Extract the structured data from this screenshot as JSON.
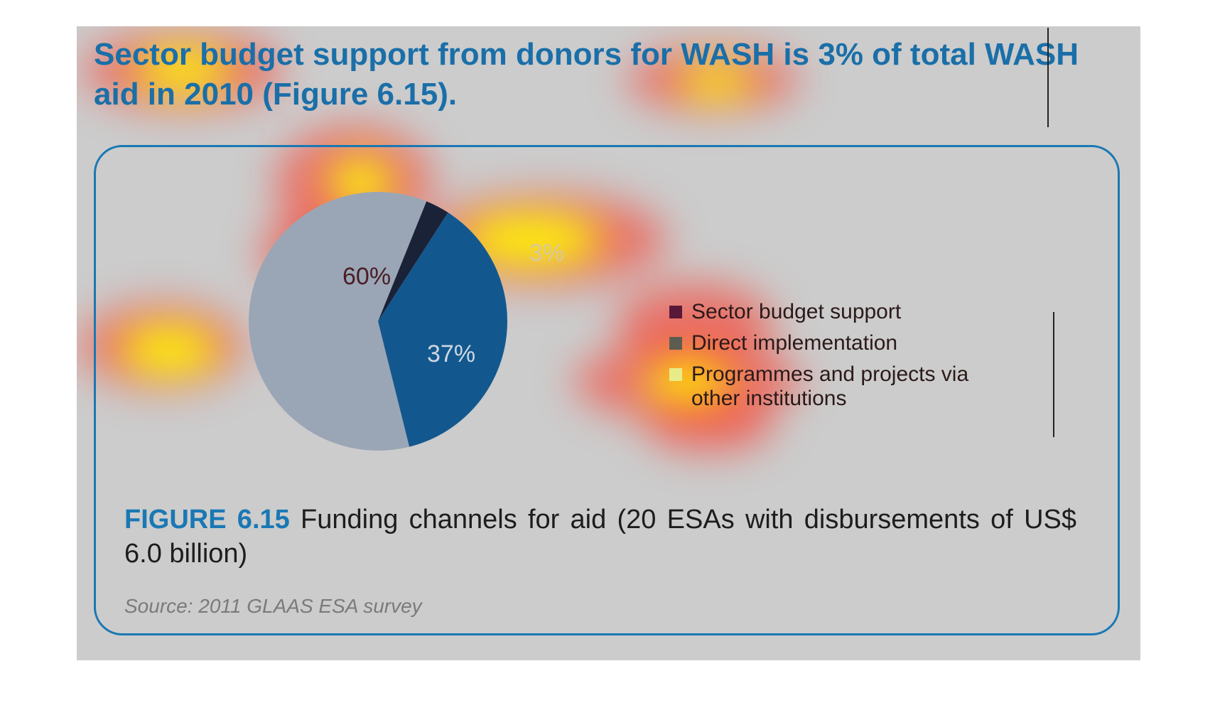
{
  "headline": "Sector budget support from donors for WASH is 3% of total WASH aid in 2010 (Figure 6.15).",
  "figure": {
    "number_label": "FIGURE 6.15",
    "caption": "Funding channels for aid (20 ESAs with disbursements of US$ 6.0 billion)",
    "source": "Source: 2011 GLAAS ESA survey"
  },
  "chart_data": {
    "type": "pie",
    "categories": [
      "Sector budget support",
      "Direct implementation",
      "Programmes and projects via other institutions"
    ],
    "values": [
      3,
      37,
      60
    ],
    "data_labels": [
      "3%",
      "37%",
      "60%"
    ],
    "colors": [
      "#1a2238",
      "#12588f",
      "#9aa6b6"
    ],
    "legend_placement": "right"
  },
  "legend": {
    "items": [
      {
        "label": "Sector budget support",
        "color": "#5a1838"
      },
      {
        "label": "Direct implementation",
        "color": "#5c5c50"
      },
      {
        "label": "Programmes and projects via other institutions",
        "color": "#e8ec88"
      }
    ]
  },
  "heatmap_colors": [
    "#ffff00",
    "#ff2a1a"
  ]
}
